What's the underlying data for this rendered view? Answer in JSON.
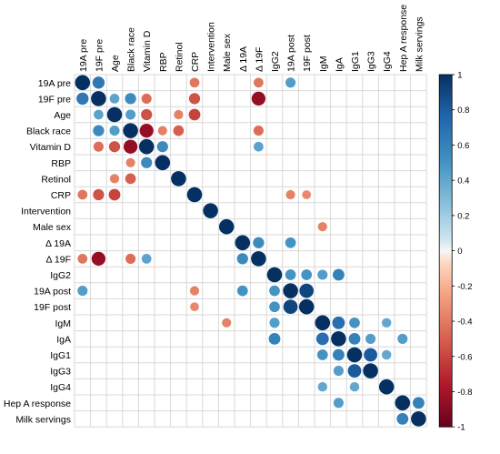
{
  "chart_data": {
    "type": "heatmap",
    "variables": [
      "19A pre",
      "19F pre",
      "Age",
      "Black race",
      "Vitamin D",
      "RBP",
      "Retinol",
      "CRP",
      "Intervention",
      "Male sex",
      "Δ 19A",
      "Δ 19F",
      "IgG2",
      "19A post",
      "19F post",
      "IgM",
      "IgA",
      "IgG1",
      "IgG3",
      "IgG4",
      "Hep A response",
      "Milk servings"
    ],
    "colorbar": {
      "ticks": [
        "1",
        "0.8",
        "0.6",
        "0.4",
        "0.2",
        "0",
        "-0.2",
        "-0.4",
        "-0.6",
        "-0.8",
        "-1"
      ],
      "range": [
        -1,
        1
      ]
    },
    "grid": true,
    "colors": {
      "positive_strong": "#053061",
      "positive_mid": "#2c8fc7",
      "neutral": "#f7f7f7",
      "negative_mid": "#f0846a",
      "negative_strong": "#c4131f"
    },
    "correlations": [
      {
        "row": 0,
        "col": 1,
        "r": 0.65
      },
      {
        "row": 0,
        "col": 7,
        "r": -0.42
      },
      {
        "row": 0,
        "col": 11,
        "r": -0.42
      },
      {
        "row": 0,
        "col": 13,
        "r": 0.45
      },
      {
        "row": 1,
        "col": 2,
        "r": 0.42
      },
      {
        "row": 1,
        "col": 3,
        "r": 0.55
      },
      {
        "row": 1,
        "col": 4,
        "r": -0.45
      },
      {
        "row": 1,
        "col": 7,
        "r": -0.55
      },
      {
        "row": 1,
        "col": 11,
        "r": -0.85
      },
      {
        "row": 2,
        "col": 3,
        "r": 0.45
      },
      {
        "row": 2,
        "col": 4,
        "r": -0.55
      },
      {
        "row": 2,
        "col": 6,
        "r": -0.38
      },
      {
        "row": 2,
        "col": 7,
        "r": -0.6
      },
      {
        "row": 3,
        "col": 4,
        "r": -0.85
      },
      {
        "row": 3,
        "col": 5,
        "r": -0.38
      },
      {
        "row": 3,
        "col": 6,
        "r": -0.5
      },
      {
        "row": 3,
        "col": 11,
        "r": -0.45
      },
      {
        "row": 4,
        "col": 5,
        "r": 0.55
      },
      {
        "row": 4,
        "col": 11,
        "r": 0.42
      },
      {
        "row": 5,
        "col": 6,
        "r": 0.0
      }
    ],
    "lower_extra": [
      {
        "row": 6,
        "col": 2,
        "r": -0.38
      },
      {
        "row": 6,
        "col": 3,
        "r": -0.5
      },
      {
        "row": 7,
        "col": 0,
        "r": -0.42
      },
      {
        "row": 7,
        "col": 1,
        "r": -0.55
      },
      {
        "row": 7,
        "col": 2,
        "r": -0.6
      },
      {
        "row": 7,
        "col": 13,
        "r": -0.38
      },
      {
        "row": 7,
        "col": 14,
        "r": -0.35
      },
      {
        "row": 9,
        "col": 15,
        "r": -0.38
      },
      {
        "row": 10,
        "col": 11,
        "r": 0.55
      },
      {
        "row": 10,
        "col": 13,
        "r": 0.5
      },
      {
        "row": 11,
        "col": 0,
        "r": -0.42
      },
      {
        "row": 11,
        "col": 1,
        "r": -0.85
      },
      {
        "row": 11,
        "col": 3,
        "r": -0.45
      },
      {
        "row": 11,
        "col": 4,
        "r": 0.42
      },
      {
        "row": 11,
        "col": 10,
        "r": 0.55
      },
      {
        "row": 12,
        "col": 13,
        "r": 0.5
      },
      {
        "row": 12,
        "col": 14,
        "r": 0.5
      },
      {
        "row": 12,
        "col": 15,
        "r": 0.45
      },
      {
        "row": 12,
        "col": 16,
        "r": 0.6
      },
      {
        "row": 13,
        "col": 0,
        "r": 0.45
      },
      {
        "row": 13,
        "col": 7,
        "r": -0.38
      },
      {
        "row": 13,
        "col": 10,
        "r": 0.5
      },
      {
        "row": 13,
        "col": 12,
        "r": 0.5
      },
      {
        "row": 13,
        "col": 14,
        "r": 0.9
      },
      {
        "row": 14,
        "col": 7,
        "r": -0.35
      },
      {
        "row": 14,
        "col": 12,
        "r": 0.5
      },
      {
        "row": 14,
        "col": 13,
        "r": 0.9
      },
      {
        "row": 15,
        "col": 9,
        "r": -0.38
      },
      {
        "row": 15,
        "col": 12,
        "r": 0.45
      },
      {
        "row": 15,
        "col": 16,
        "r": 0.7
      },
      {
        "row": 15,
        "col": 17,
        "r": 0.5
      },
      {
        "row": 15,
        "col": 19,
        "r": 0.4
      },
      {
        "row": 16,
        "col": 12,
        "r": 0.6
      },
      {
        "row": 16,
        "col": 15,
        "r": 0.7
      },
      {
        "row": 16,
        "col": 17,
        "r": 0.6
      },
      {
        "row": 16,
        "col": 18,
        "r": 0.45
      },
      {
        "row": 16,
        "col": 20,
        "r": 0.45
      },
      {
        "row": 17,
        "col": 15,
        "r": 0.5
      },
      {
        "row": 17,
        "col": 16,
        "r": 0.6
      },
      {
        "row": 17,
        "col": 18,
        "r": 0.8
      },
      {
        "row": 17,
        "col": 19,
        "r": 0.4
      },
      {
        "row": 18,
        "col": 16,
        "r": 0.45
      },
      {
        "row": 18,
        "col": 17,
        "r": 0.8
      },
      {
        "row": 19,
        "col": 15,
        "r": 0.4
      },
      {
        "row": 19,
        "col": 17,
        "r": 0.4
      },
      {
        "row": 20,
        "col": 16,
        "r": 0.45
      },
      {
        "row": 20,
        "col": 21,
        "r": 0.6
      },
      {
        "row": 21,
        "col": 20,
        "r": 0.6
      }
    ]
  }
}
